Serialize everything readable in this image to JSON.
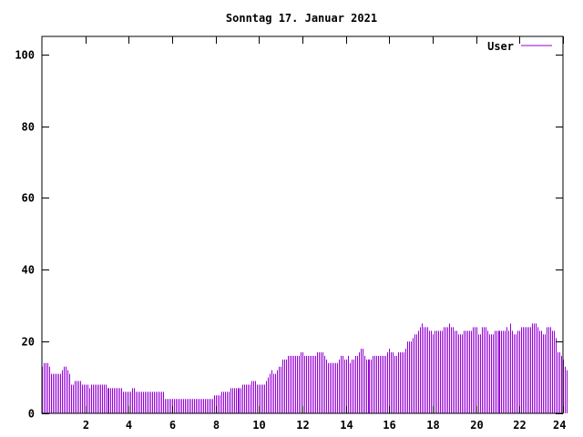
{
  "chart_data": {
    "type": "bar",
    "title": "Sonntag 17. Januar 2021",
    "xlabel": "",
    "ylabel": "",
    "xlim": [
      0,
      24
    ],
    "ylim": [
      0,
      105
    ],
    "x_ticks": [
      2,
      4,
      6,
      8,
      10,
      12,
      14,
      16,
      18,
      20,
      22,
      24
    ],
    "y_ticks": [
      0,
      20,
      40,
      60,
      80,
      100
    ],
    "grid": false,
    "legend_position": "top-right",
    "series": [
      {
        "name": "User",
        "color": "#9400d3",
        "sample_interval_minutes": 5,
        "values": [
          13,
          14,
          14,
          14,
          13,
          11,
          11,
          11,
          11,
          11,
          11,
          12,
          13,
          13,
          12,
          11,
          8,
          8,
          9,
          9,
          9,
          9,
          8,
          8,
          8,
          8,
          7,
          8,
          8,
          8,
          8,
          8,
          8,
          8,
          8,
          8,
          7,
          7,
          7,
          7,
          7,
          7,
          7,
          7,
          7,
          6,
          6,
          6,
          6,
          6,
          7,
          7,
          6,
          6,
          6,
          6,
          6,
          6,
          6,
          6,
          6,
          6,
          6,
          6,
          6,
          6,
          6,
          6,
          4,
          4,
          4,
          4,
          4,
          4,
          4,
          4,
          4,
          4,
          4,
          4,
          4,
          4,
          4,
          4,
          4,
          4,
          4,
          4,
          4,
          4,
          4,
          4,
          4,
          4,
          4,
          5,
          5,
          5,
          5,
          6,
          6,
          6,
          6,
          6,
          7,
          7,
          7,
          7,
          7,
          7,
          7,
          8,
          8,
          8,
          8,
          8,
          9,
          9,
          9,
          8,
          8,
          8,
          8,
          8,
          9,
          10,
          11,
          12,
          11,
          11,
          12,
          13,
          13,
          15,
          15,
          15,
          16,
          16,
          16,
          16,
          16,
          16,
          16,
          17,
          17,
          16,
          16,
          16,
          16,
          16,
          16,
          16,
          17,
          17,
          17,
          17,
          16,
          15,
          14,
          14,
          14,
          14,
          14,
          14,
          15,
          16,
          16,
          15,
          15,
          16,
          14,
          15,
          15,
          16,
          16,
          17,
          18,
          18,
          16,
          15,
          15,
          15,
          15,
          16,
          16,
          16,
          16,
          16,
          16,
          16,
          16,
          17,
          18,
          17,
          17,
          16,
          16,
          17,
          17,
          17,
          17,
          18,
          20,
          20,
          20,
          21,
          22,
          22,
          23,
          24,
          25,
          24,
          24,
          24,
          23,
          23,
          22,
          23,
          23,
          23,
          23,
          23,
          24,
          24,
          24,
          25,
          24,
          24,
          23,
          23,
          22,
          22,
          22,
          23,
          23,
          23,
          23,
          23,
          24,
          24,
          24,
          22,
          22,
          24,
          24,
          24,
          23,
          22,
          22,
          22,
          23,
          23,
          23,
          23,
          23,
          23,
          23,
          24,
          23,
          25,
          23,
          22,
          22,
          23,
          23,
          24,
          24,
          24,
          24,
          24,
          24,
          25,
          25,
          25,
          24,
          23,
          23,
          22,
          22,
          24,
          24,
          24,
          23,
          23,
          21,
          17,
          17,
          16,
          15,
          13,
          12
        ]
      }
    ]
  }
}
